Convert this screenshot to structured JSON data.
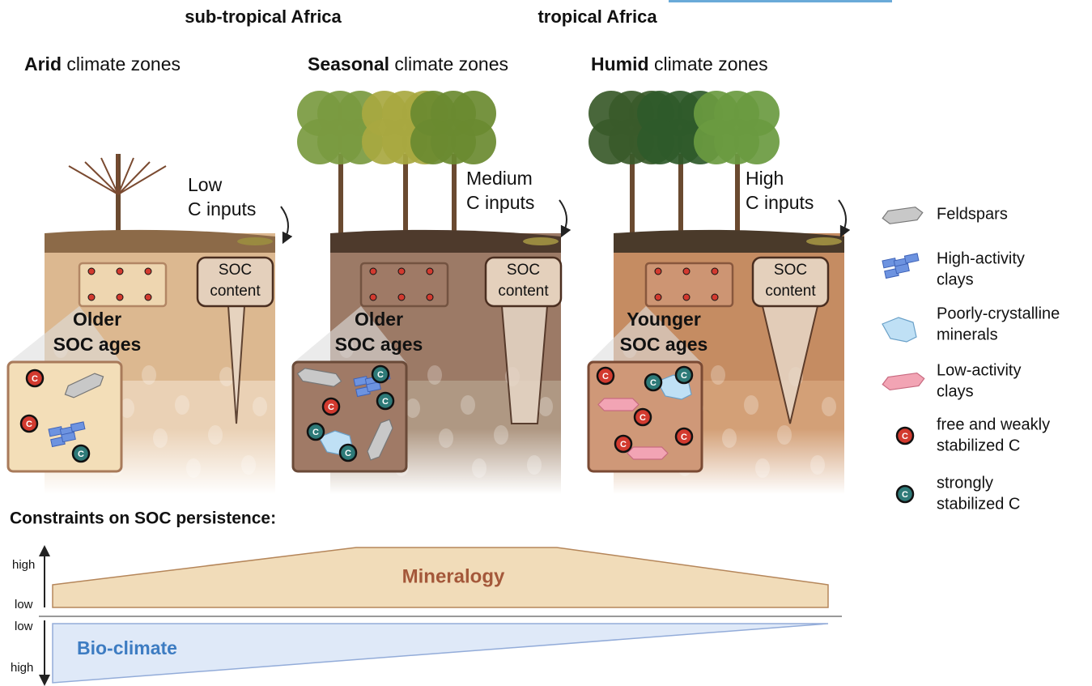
{
  "regions": [
    "sub-tropical Africa",
    "tropical Africa"
  ],
  "panels": [
    {
      "zone_bold": "Arid",
      "zone_rest": "climate zones",
      "inputs": [
        "Low",
        "C inputs"
      ],
      "soc_box": [
        "SOC",
        "content"
      ],
      "age": [
        "Older",
        "SOC ages"
      ]
    },
    {
      "zone_bold": "Seasonal",
      "zone_rest": "climate zones",
      "inputs": [
        "Medium",
        "C inputs"
      ],
      "soc_box": [
        "SOC",
        "content"
      ],
      "age": [
        "Older",
        "SOC ages"
      ]
    },
    {
      "zone_bold": "Humid",
      "zone_rest": "climate zones",
      "inputs": [
        "High",
        "C inputs"
      ],
      "soc_box": [
        "SOC",
        "content"
      ],
      "age": [
        "Younger",
        "SOC ages"
      ]
    }
  ],
  "carbon_symbol": "C",
  "legend": [
    {
      "label": [
        "Feldspars"
      ]
    },
    {
      "label": [
        "High-activity",
        "clays"
      ]
    },
    {
      "label": [
        "Poorly-crystalline",
        "minerals"
      ]
    },
    {
      "label": [
        "Low-activity",
        "clays"
      ]
    },
    {
      "label": [
        "free and weakly",
        "stabilized C"
      ]
    },
    {
      "label": [
        "strongly",
        "stabilized C"
      ]
    }
  ],
  "constraints": {
    "title": "Constraints on SOC persistence:",
    "mineralogy": {
      "label": "Mineralogy",
      "high": "high",
      "low": "low"
    },
    "bioclimate": {
      "label": "Bio-climate",
      "low": "low",
      "high": "high"
    }
  }
}
